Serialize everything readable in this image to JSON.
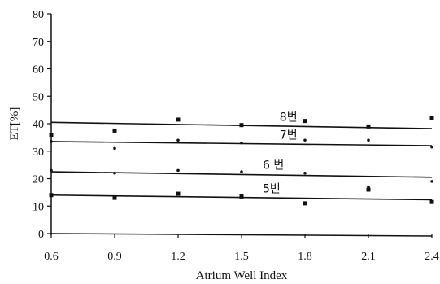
{
  "chart_data": {
    "type": "scatter",
    "title": "",
    "xlabel": "Atrium Well Index",
    "ylabel": "ET[%]",
    "xlim": [
      0.6,
      2.4
    ],
    "ylim": [
      0,
      80
    ],
    "x_ticks": [
      "0.6",
      "0.9",
      "1.2",
      "1.5",
      "1.8",
      "2.1",
      "2.4"
    ],
    "y_ticks": [
      "0",
      "10",
      "20",
      "30",
      "40",
      "50",
      "60",
      "70",
      "80"
    ],
    "grid": false,
    "legend": "none",
    "series": [
      {
        "name": "8번",
        "marker": "square",
        "x": [
          0.6,
          0.9,
          1.2,
          1.5,
          1.8,
          2.1,
          2.4
        ],
        "y": [
          36,
          37.5,
          41.5,
          39.5,
          41,
          39,
          42
        ],
        "trend": [
          40.5,
          38.2
        ]
      },
      {
        "name": "7번",
        "marker": "dot",
        "x": [
          0.6,
          0.9,
          1.2,
          1.5,
          1.8,
          2.1,
          2.4
        ],
        "y": [
          33.5,
          31,
          34,
          33,
          34,
          34,
          31.5
        ],
        "trend": [
          33.5,
          32
        ]
      },
      {
        "name": "6 번",
        "marker": "dot",
        "x": [
          0.6,
          0.9,
          1.2,
          1.5,
          1.8,
          2.1,
          2.4
        ],
        "y": [
          23,
          22,
          23,
          22.5,
          22,
          17,
          19
        ],
        "trend": [
          22.5,
          20.5
        ]
      },
      {
        "name": "5번",
        "marker": "square",
        "x": [
          0.6,
          0.9,
          1.2,
          1.5,
          1.8,
          2.1,
          2.4
        ],
        "y": [
          14,
          13,
          14.5,
          13.5,
          11,
          16,
          11.5
        ],
        "trend": [
          14,
          12.3
        ]
      }
    ],
    "annotations": [
      {
        "text": "8번",
        "series": "8번",
        "x": 1.68,
        "y": 41
      },
      {
        "text": "7번",
        "series": "7번",
        "x": 1.68,
        "y": 34.5
      },
      {
        "text": "6 번",
        "series": "6 번",
        "x": 1.6,
        "y": 23.5
      },
      {
        "text": "5번",
        "series": "5번",
        "x": 1.6,
        "y": 15
      }
    ]
  }
}
